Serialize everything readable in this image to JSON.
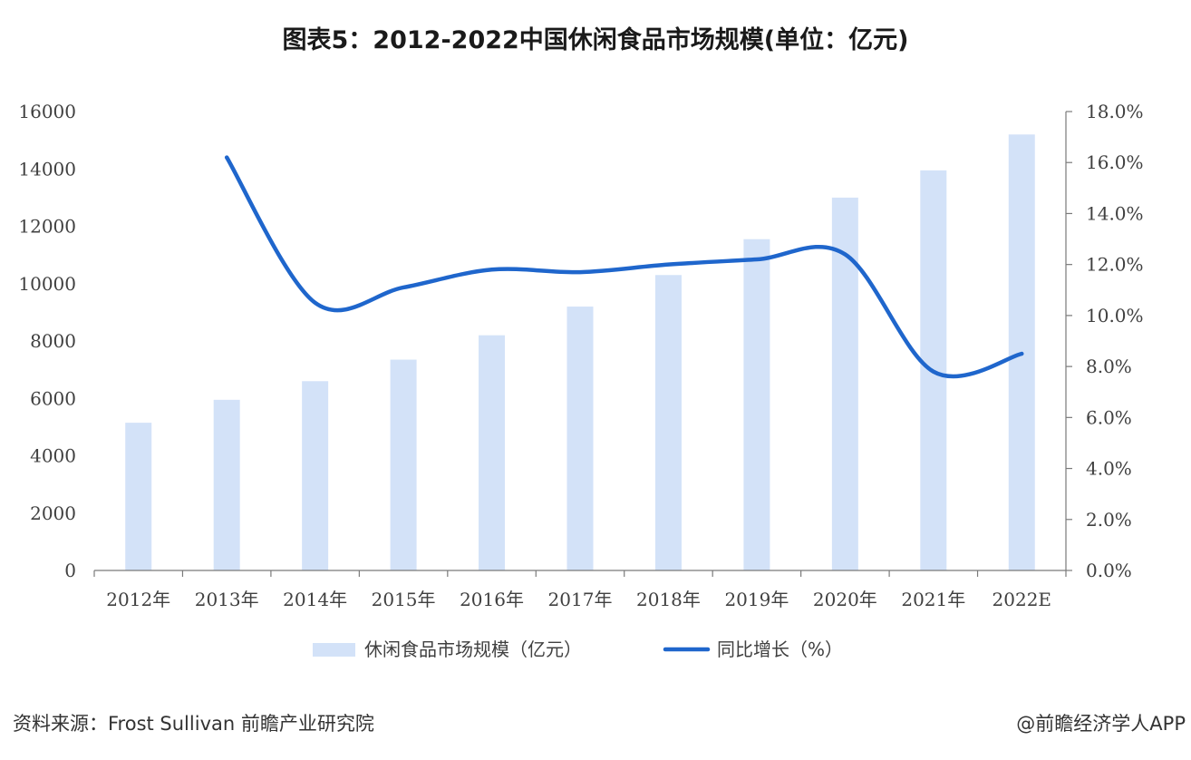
{
  "colors": {
    "bar": "#d3e2f8",
    "line": "#1f66cc",
    "axis": "#7a7a7a",
    "text": "#404040"
  },
  "chart_data": {
    "type": "bar",
    "title": "图表5：2012-2022中国休闲食品市场规模(单位：亿元)",
    "categories": [
      "2012年",
      "2013年",
      "2014年",
      "2015年",
      "2016年",
      "2017年",
      "2018年",
      "2019年",
      "2020年",
      "2021年",
      "2022E"
    ],
    "y_left": {
      "ticks": [
        "0",
        "2000",
        "4000",
        "6000",
        "8000",
        "10000",
        "12000",
        "14000",
        "16000"
      ],
      "ylim": [
        0,
        16000
      ]
    },
    "y_right": {
      "ticks": [
        "0.0%",
        "2.0%",
        "4.0%",
        "6.0%",
        "8.0%",
        "10.0%",
        "12.0%",
        "14.0%",
        "16.0%",
        "18.0%"
      ],
      "ylim": [
        0,
        18
      ]
    },
    "series": [
      {
        "name": "休闲食品市场规模（亿元）",
        "type": "bar",
        "axis": "left",
        "values": [
          5150,
          5950,
          6600,
          7350,
          8200,
          9200,
          10300,
          11550,
          13000,
          13950,
          15200
        ]
      },
      {
        "name": "同比增长（%）",
        "type": "line",
        "axis": "right",
        "smooth": true,
        "values": [
          null,
          16.2,
          10.5,
          11.1,
          11.8,
          11.7,
          12.0,
          12.2,
          12.4,
          7.8,
          8.5
        ]
      }
    ],
    "legend": "bottom-center",
    "grid": false
  },
  "footer": {
    "source": "资料来源：Frost Sullivan 前瞻产业研究院",
    "credit": "@前瞻经济学人APP"
  }
}
